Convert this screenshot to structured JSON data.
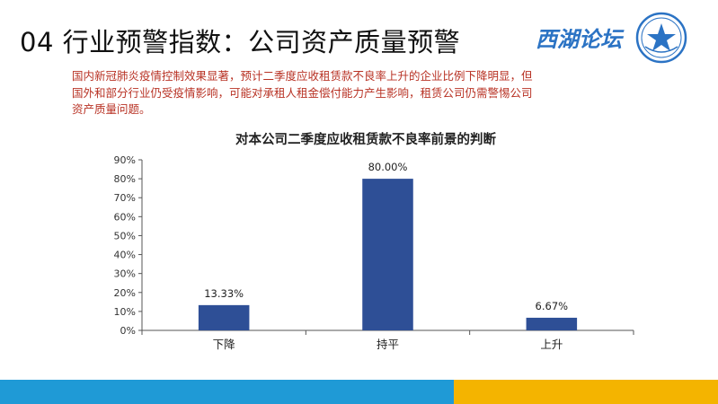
{
  "slide": {
    "title": "04 行业预警指数：公司资产质量预警",
    "brand": "西湖论坛",
    "summary_lines": [
      "国内新冠肺炎疫情控制效果显著，预计二季度应收租赁款不良率上升的企业比例下降明显，但",
      "国外和部分行业仍受疫情影响，可能对承租人租金偿付能力产生影响，租赁公司仍需警惕公司",
      "资产质量问题。"
    ]
  },
  "colors": {
    "bar": "#2e4f96",
    "summary_text": "#b83224",
    "brand": "#2b73c4",
    "footer_left": "#1f9ad6",
    "footer_right": "#f4b400"
  },
  "chart_data": {
    "type": "bar",
    "title": "对本公司二季度应收租赁款不良率前景的判断",
    "categories": [
      "下降",
      "持平",
      "上升"
    ],
    "values": [
      13.33,
      80.0,
      6.67
    ],
    "data_labels": [
      "13.33%",
      "80.00%",
      "6.67%"
    ],
    "ylim": [
      0,
      90
    ],
    "yticks": [
      0,
      10,
      20,
      30,
      40,
      50,
      60,
      70,
      80,
      90
    ],
    "ytick_labels": [
      "0%",
      "10%",
      "20%",
      "30%",
      "40%",
      "50%",
      "60%",
      "70%",
      "80%",
      "90%"
    ],
    "xlabel": "",
    "ylabel": "",
    "grid": false,
    "legend": false
  }
}
